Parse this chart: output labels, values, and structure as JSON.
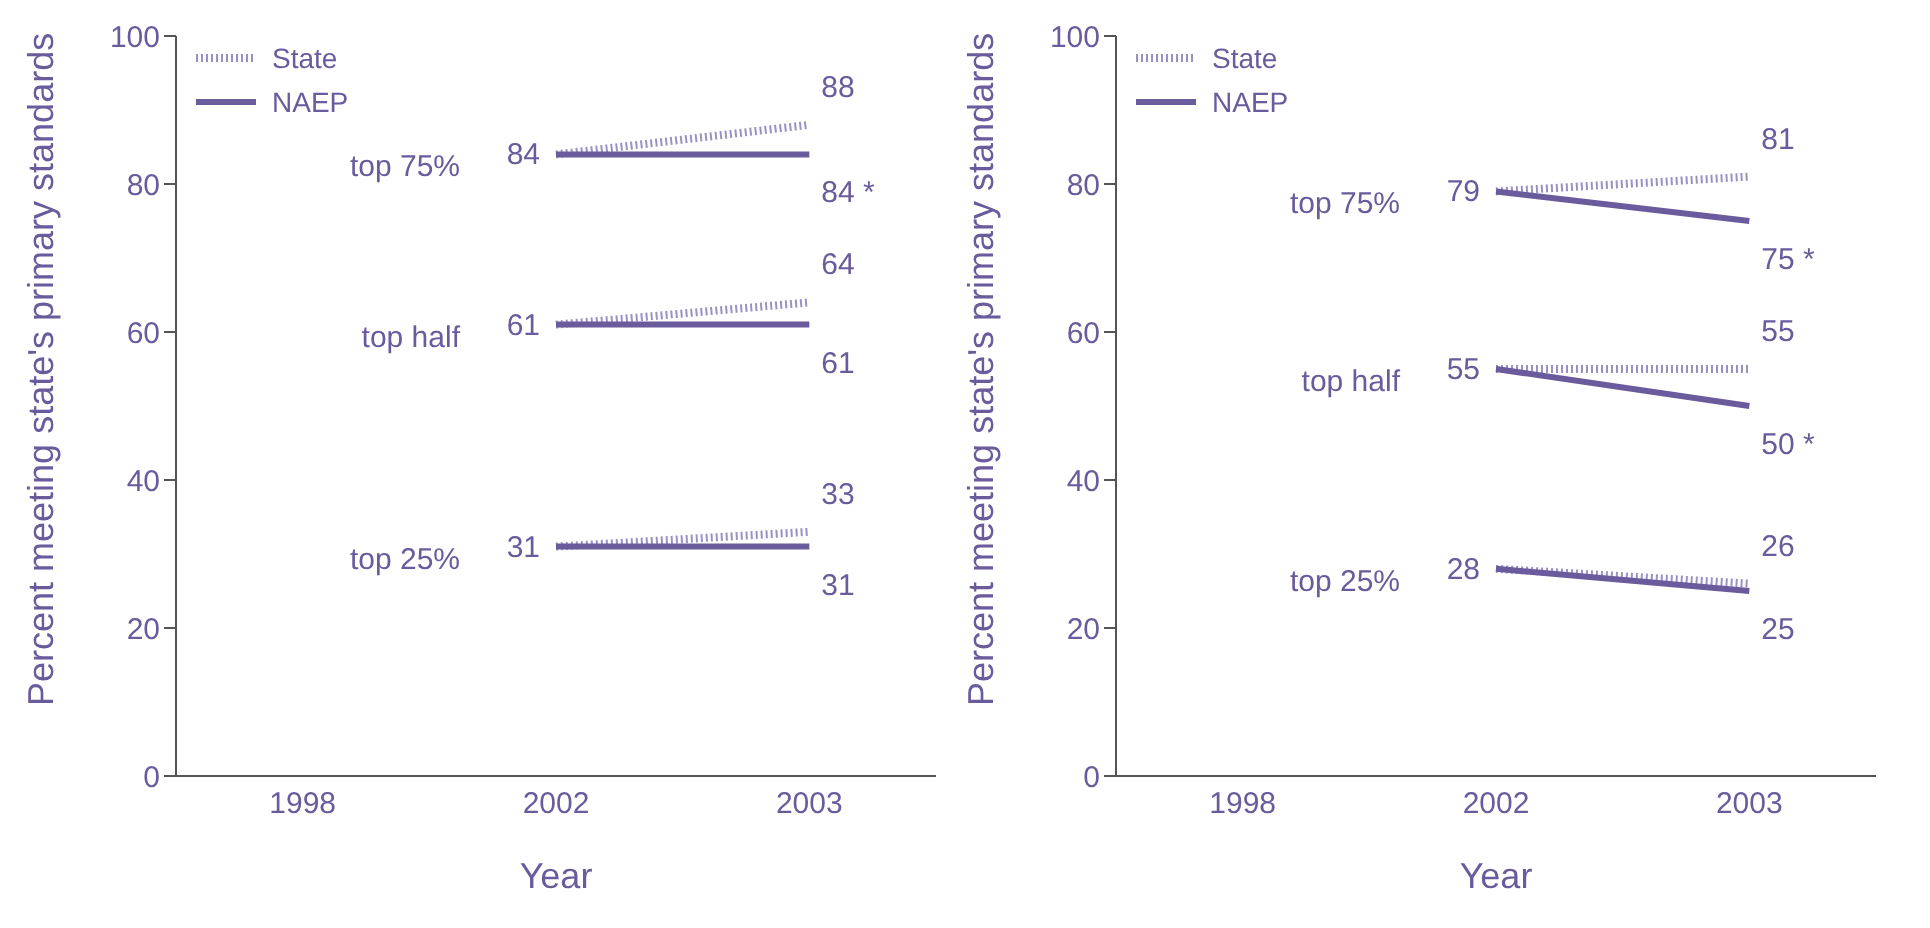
{
  "chart_data": [
    {
      "type": "line",
      "xlabel": "Year",
      "ylabel": "Percent meeting state's primary standards",
      "categories": [
        "1998",
        "2002",
        "2003"
      ],
      "ylim": [
        0,
        100
      ],
      "yticks": [
        0,
        20,
        40,
        60,
        80,
        100
      ],
      "grid": false,
      "legend": "top left",
      "marker": "none",
      "series": [
        {
          "name": "State",
          "color": "#9a90c4",
          "line_style": "dotted",
          "values": [
            null,
            84,
            88
          ],
          "value_labels": [
            null,
            "84",
            "88"
          ]
        },
        {
          "name": "NAEP",
          "color": "#6a5b9c",
          "line_style": "solid",
          "values": [
            null,
            84,
            84
          ],
          "value_labels": [
            null,
            null,
            "84 *"
          ]
        },
        {
          "color": "#9a90c4",
          "line_style": "dotted",
          "values": [
            null,
            61,
            64
          ],
          "value_labels": [
            null,
            "61",
            "64"
          ]
        },
        {
          "color": "#6a5b9c",
          "line_style": "solid",
          "values": [
            null,
            61,
            61
          ],
          "value_labels": [
            null,
            null,
            "61"
          ]
        },
        {
          "color": "#9a90c4",
          "line_style": "dotted",
          "values": [
            null,
            31,
            33
          ],
          "value_labels": [
            null,
            "31",
            "33"
          ]
        },
        {
          "color": "#6a5b9c",
          "line_style": "solid",
          "values": [
            null,
            31,
            31
          ],
          "value_labels": [
            null,
            null,
            "31"
          ]
        }
      ],
      "annotations": [
        "top 75%",
        "top half",
        "top 25%"
      ]
    },
    {
      "type": "line",
      "xlabel": "Year",
      "ylabel": "Percent meeting state's primary standards",
      "categories": [
        "1998",
        "2002",
        "2003"
      ],
      "ylim": [
        0,
        100
      ],
      "yticks": [
        0,
        20,
        40,
        60,
        80,
        100
      ],
      "grid": false,
      "legend": "top left",
      "marker": "none",
      "series": [
        {
          "name": "State",
          "color": "#9a90c4",
          "line_style": "dotted",
          "values": [
            null,
            79,
            81
          ],
          "value_labels": [
            null,
            "79",
            "81"
          ]
        },
        {
          "name": "NAEP",
          "color": "#6a5b9c",
          "line_style": "solid",
          "values": [
            null,
            79,
            75
          ],
          "value_labels": [
            null,
            null,
            "75 *"
          ]
        },
        {
          "color": "#9a90c4",
          "line_style": "dotted",
          "values": [
            null,
            55,
            55
          ],
          "value_labels": [
            null,
            "55",
            "55"
          ]
        },
        {
          "color": "#6a5b9c",
          "line_style": "solid",
          "values": [
            null,
            55,
            50
          ],
          "value_labels": [
            null,
            null,
            "50 *"
          ]
        },
        {
          "color": "#9a90c4",
          "line_style": "dotted",
          "values": [
            null,
            28,
            26
          ],
          "value_labels": [
            null,
            "28",
            "26"
          ]
        },
        {
          "color": "#6a5b9c",
          "line_style": "solid",
          "values": [
            null,
            28,
            25
          ],
          "value_labels": [
            null,
            null,
            "25"
          ]
        }
      ],
      "annotations": [
        "top 75%",
        "top half",
        "top 25%"
      ]
    }
  ]
}
